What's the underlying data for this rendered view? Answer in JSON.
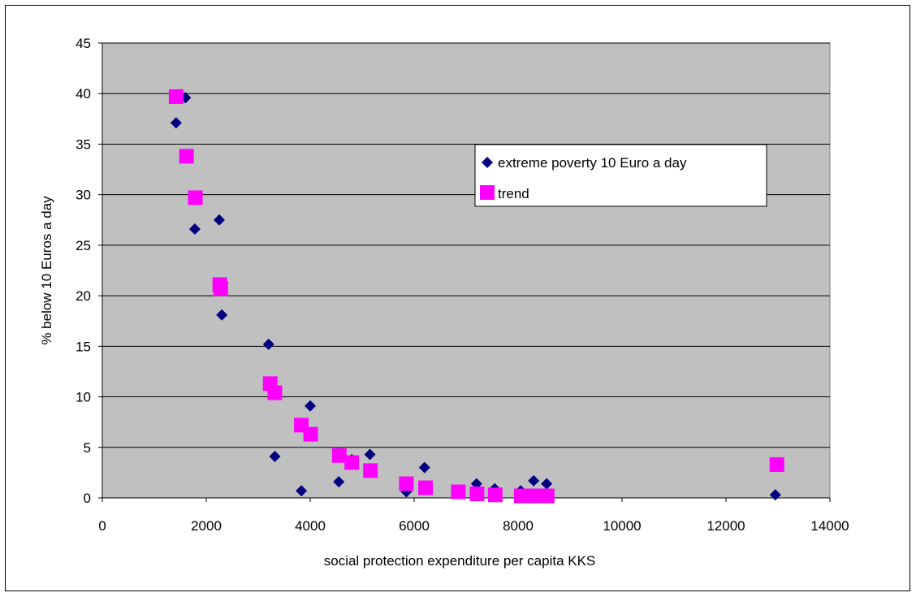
{
  "chart_data": {
    "type": "scatter",
    "title": "",
    "xlabel": "social protection expenditure per capita KKS",
    "ylabel": "% below 10 Euros a day",
    "xlim": [
      0,
      14000
    ],
    "ylim": [
      0,
      45
    ],
    "xticks": [
      0,
      2000,
      4000,
      6000,
      8000,
      10000,
      12000,
      14000
    ],
    "yticks": [
      0,
      5,
      10,
      15,
      20,
      25,
      30,
      35,
      40,
      45
    ],
    "grid": "horizontal",
    "plot_background": "#C0C0C0",
    "legend_position": "top-right",
    "series": [
      {
        "name": "extreme poverty 10 Euro a day",
        "marker": "diamond",
        "color": "#000080",
        "points": [
          [
            1420,
            37.1
          ],
          [
            1600,
            39.6
          ],
          [
            1780,
            26.6
          ],
          [
            2250,
            27.5
          ],
          [
            2300,
            18.1
          ],
          [
            3200,
            15.2
          ],
          [
            3320,
            4.1
          ],
          [
            3830,
            0.7
          ],
          [
            4000,
            9.1
          ],
          [
            4550,
            1.6
          ],
          [
            4800,
            3.8
          ],
          [
            5150,
            4.3
          ],
          [
            5850,
            0.6
          ],
          [
            6200,
            3.0
          ],
          [
            7200,
            1.4
          ],
          [
            7550,
            0.9
          ],
          [
            8050,
            0.7
          ],
          [
            8300,
            1.7
          ],
          [
            8550,
            1.4
          ],
          [
            12950,
            0.3
          ]
        ]
      },
      {
        "name": "trend",
        "marker": "square",
        "color": "#FF00FF",
        "points": [
          [
            1420,
            39.7
          ],
          [
            1620,
            33.8
          ],
          [
            1790,
            29.7
          ],
          [
            2260,
            21.1
          ],
          [
            2280,
            20.7
          ],
          [
            3230,
            11.3
          ],
          [
            3320,
            10.4
          ],
          [
            3830,
            7.2
          ],
          [
            4010,
            6.3
          ],
          [
            4560,
            4.2
          ],
          [
            4800,
            3.5
          ],
          [
            5160,
            2.7
          ],
          [
            5850,
            1.4
          ],
          [
            6220,
            1.0
          ],
          [
            6850,
            0.6
          ],
          [
            7210,
            0.4
          ],
          [
            7560,
            0.3
          ],
          [
            8060,
            0.2
          ],
          [
            8310,
            0.2
          ],
          [
            8560,
            0.2
          ],
          [
            12980,
            3.3
          ]
        ]
      }
    ]
  }
}
